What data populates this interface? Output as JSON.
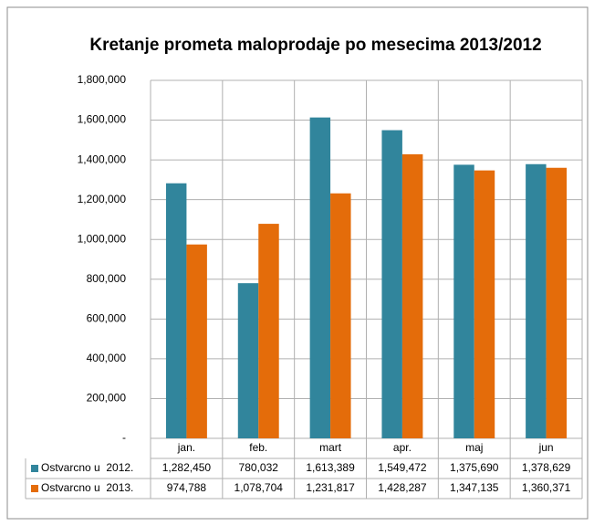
{
  "chart_data": {
    "type": "bar",
    "title": "Kretanje prometa maloprodaje po mesecima 2013/2012",
    "categories": [
      "jan.",
      "feb.",
      "mart",
      "apr.",
      "maj",
      "jun"
    ],
    "series": [
      {
        "name": "Ostvarcno u  2012.",
        "color": "#31859c",
        "values": [
          1282450,
          780032,
          1613389,
          1549472,
          1375690,
          1378629
        ],
        "value_labels": [
          "1,282,450",
          "780,032",
          "1,613,389",
          "1,549,472",
          "1,375,690",
          "1,378,629"
        ]
      },
      {
        "name": "Ostvarcno u  2013.",
        "color": "#e46c0a",
        "values": [
          974788,
          1078704,
          1231817,
          1428287,
          1347135,
          1360371
        ],
        "value_labels": [
          "974,788",
          "1,078,704",
          "1,231,817",
          "1,428,287",
          "1,347,135",
          "1,360,371"
        ]
      }
    ],
    "ylim": [
      0,
      1800000
    ],
    "yticks": [
      {
        "value": 0,
        "label": "-"
      },
      {
        "value": 200000,
        "label": "200,000"
      },
      {
        "value": 400000,
        "label": "400,000"
      },
      {
        "value": 600000,
        "label": "600,000"
      },
      {
        "value": 800000,
        "label": "800,000"
      },
      {
        "value": 1000000,
        "label": "1,000,000"
      },
      {
        "value": 1200000,
        "label": "1,200,000"
      },
      {
        "value": 1400000,
        "label": "1,400,000"
      },
      {
        "value": 1600000,
        "label": "1,600,000"
      },
      {
        "value": 1800000,
        "label": "1,800,000"
      }
    ],
    "grid": true
  }
}
